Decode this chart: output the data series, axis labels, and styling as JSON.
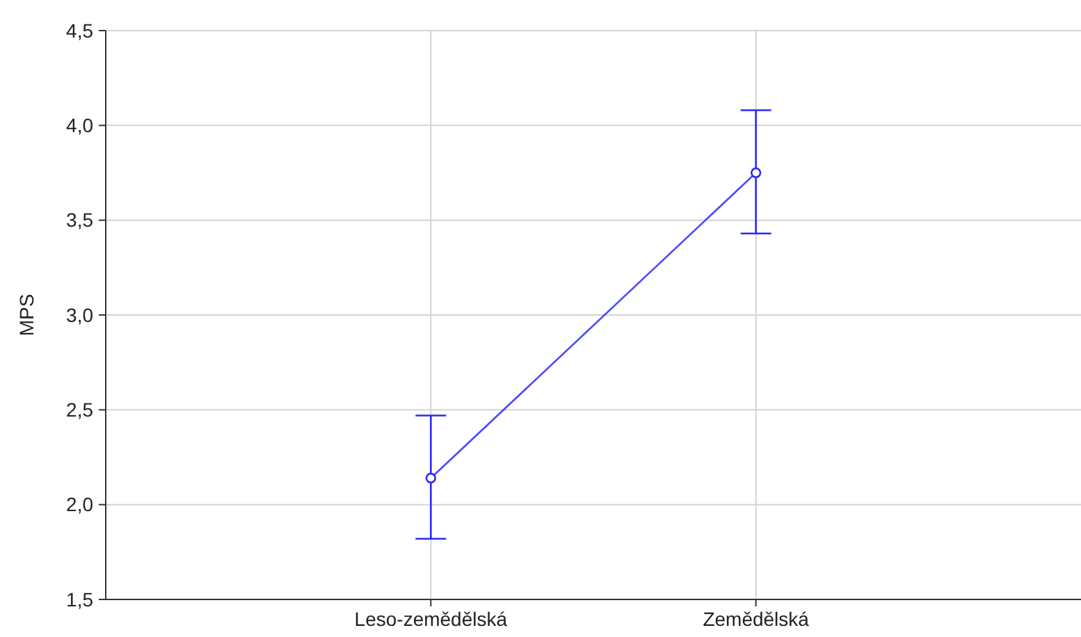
{
  "chart_data": {
    "type": "line",
    "ylabel": "MPS",
    "categories": [
      "Leso-zemědělská",
      "Zemědělská"
    ],
    "series": [
      {
        "color": "#2a2aff",
        "values": [
          2.14,
          3.75
        ],
        "errors": [
          [
            1.82,
            2.47
          ],
          [
            3.43,
            4.08
          ]
        ]
      }
    ],
    "ylim": [
      1.5,
      4.5
    ],
    "yticks": [
      {
        "value": 1.5,
        "label": "1,5"
      },
      {
        "value": 2,
        "label": "2,0"
      },
      {
        "value": 2.5,
        "label": "2,5"
      },
      {
        "value": 3,
        "label": "3,0"
      },
      {
        "value": 3.5,
        "label": "3,5"
      },
      {
        "value": 4,
        "label": "4,0"
      },
      {
        "value": 4.5,
        "label": "4,5"
      }
    ],
    "grid": true,
    "marker": "circle",
    "line_style": "solid"
  }
}
